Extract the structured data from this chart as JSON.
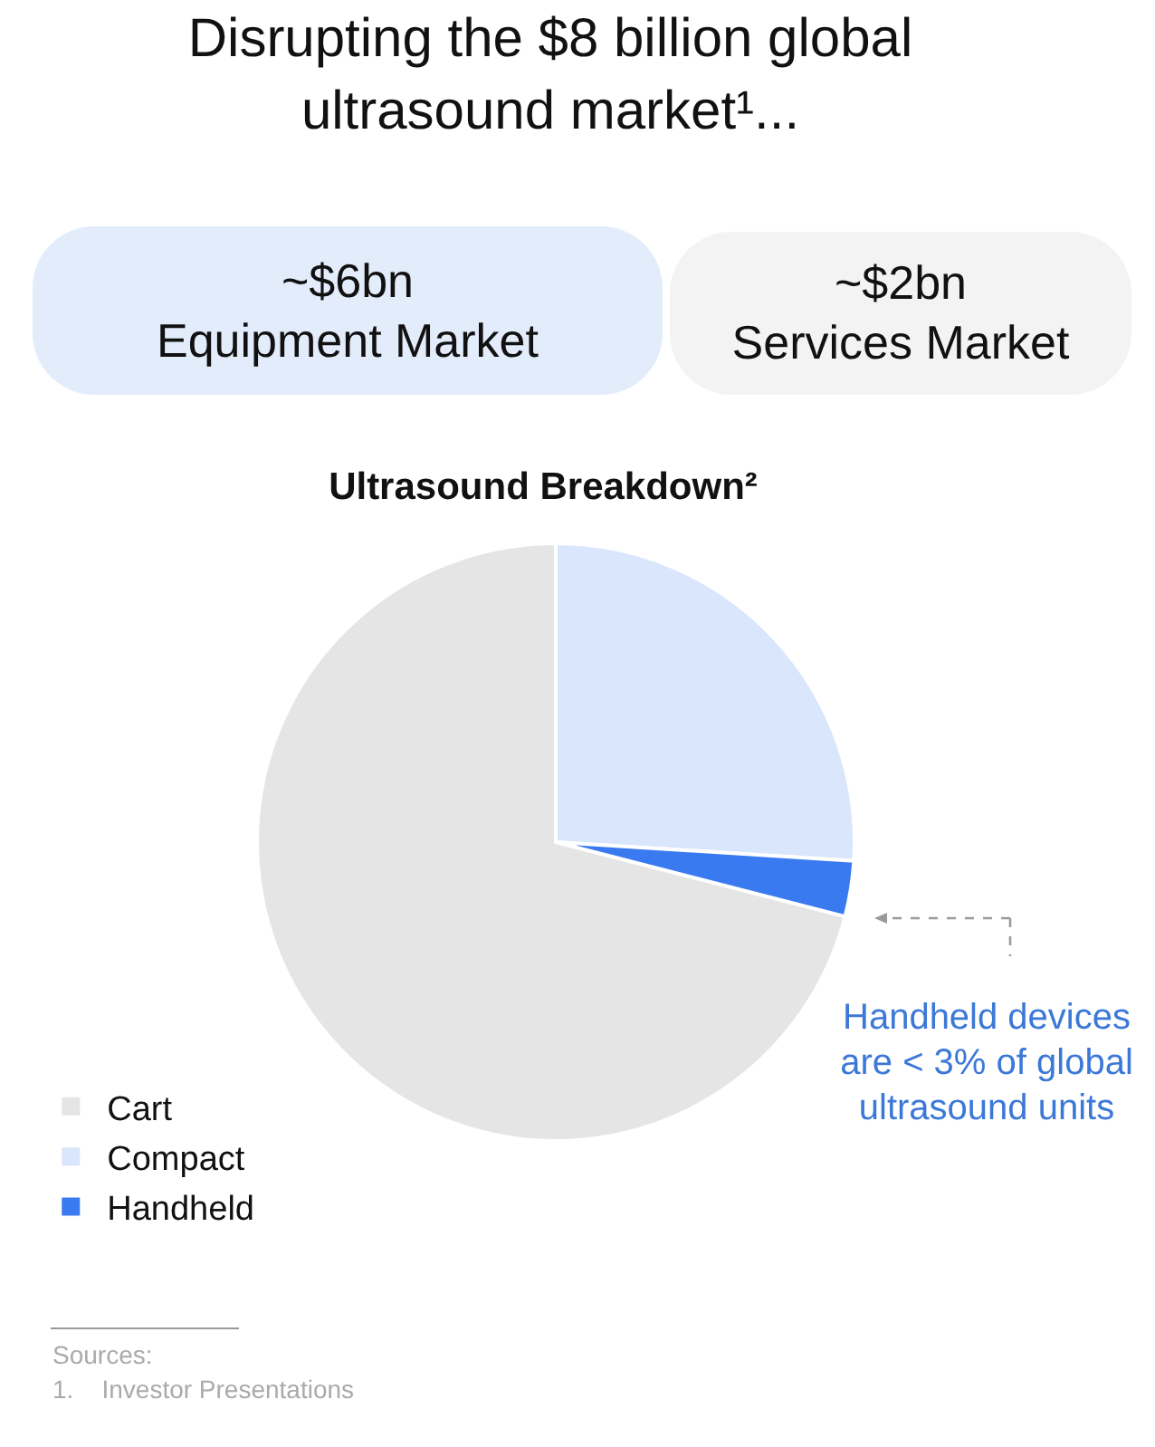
{
  "chart_data": [
    {
      "type": "other",
      "title": "Disrupting the $8 billion global ultrasound market¹...",
      "annotations": [
        "~$6bn\nEquipment Market",
        "~$2bn\nServices Market"
      ]
    },
    {
      "type": "pie",
      "title": "Ultrasound Breakdown²",
      "categories": [
        "Cart",
        "Compact",
        "Handheld"
      ],
      "values": [
        71,
        26,
        3
      ],
      "colors": [
        "#e5e5e5",
        "#dae6fb",
        "#3a7af0"
      ],
      "legend": "bottom left",
      "annotations": [
        "Handheld devices are < 3% of global ultrasound units",
        "Sources:",
        "1.    Investor Presentations"
      ]
    }
  ]
}
